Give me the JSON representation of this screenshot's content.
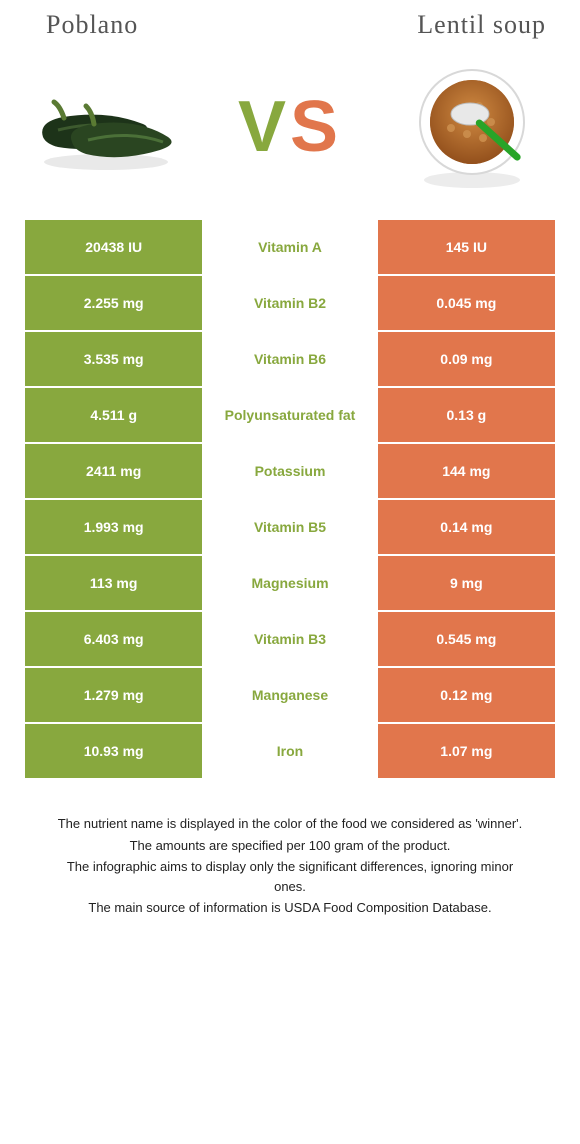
{
  "colors": {
    "green": "#88A83E",
    "orange": "#E1764C",
    "textDark": "#444444",
    "white": "#ffffff"
  },
  "titles": {
    "left": "Poblano",
    "right": "Lentil soup"
  },
  "vs": {
    "v": "V",
    "s": "S"
  },
  "rows": [
    {
      "left": "20438 IU",
      "mid": "Vitamin A",
      "right": "145 IU",
      "win": "left"
    },
    {
      "left": "2.255 mg",
      "mid": "Vitamin B2",
      "right": "0.045 mg",
      "win": "left"
    },
    {
      "left": "3.535 mg",
      "mid": "Vitamin B6",
      "right": "0.09 mg",
      "win": "left"
    },
    {
      "left": "4.511 g",
      "mid": "Polyunsaturated fat",
      "right": "0.13 g",
      "win": "left"
    },
    {
      "left": "2411 mg",
      "mid": "Potassium",
      "right": "144 mg",
      "win": "left"
    },
    {
      "left": "1.993 mg",
      "mid": "Vitamin B5",
      "right": "0.14 mg",
      "win": "left"
    },
    {
      "left": "113 mg",
      "mid": "Magnesium",
      "right": "9 mg",
      "win": "left"
    },
    {
      "left": "6.403 mg",
      "mid": "Vitamin B3",
      "right": "0.545 mg",
      "win": "left"
    },
    {
      "left": "1.279 mg",
      "mid": "Manganese",
      "right": "0.12 mg",
      "win": "left"
    },
    {
      "left": "10.93 mg",
      "mid": "Iron",
      "right": "1.07 mg",
      "win": "left"
    }
  ],
  "footnotes": [
    "The nutrient name is displayed in the color of the food we considered as 'winner'.",
    "The amounts are specified per 100 gram of the product.",
    "The infographic aims to display only the significant differences, ignoring minor ones.",
    "The main source of information is USDA Food Composition Database."
  ]
}
